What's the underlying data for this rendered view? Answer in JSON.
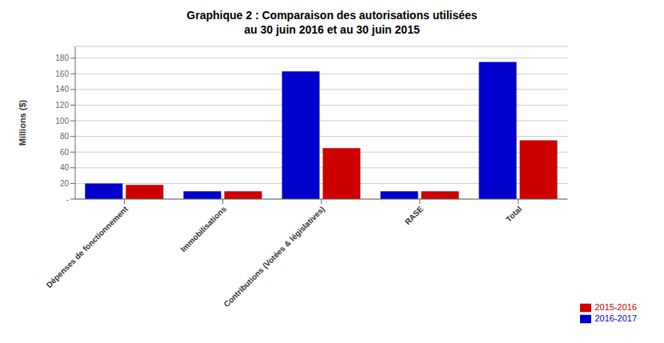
{
  "chart_data": {
    "type": "bar",
    "title": "Graphique 2 : Comparaison des autorisations utilisées\nau 30 juin 2016 et au 30 juin 2015",
    "categories": [
      "Dépenses de fonctionnement",
      "Immobilisations",
      "Contributions (Votées & législatives)",
      "RASE",
      "Total"
    ],
    "series": [
      {
        "name": "2016-2017",
        "color": "#0000CC",
        "values": [
          20,
          10,
          163,
          10,
          175
        ]
      },
      {
        "name": "2015-2016",
        "color": "#CC0000",
        "values": [
          18,
          10,
          65,
          10,
          75
        ]
      }
    ],
    "ylabel": "Millions ($)",
    "ylim": [
      0,
      195
    ],
    "yticks": [
      {
        "value": 0,
        "label": "-"
      },
      20,
      40,
      60,
      80,
      100,
      120,
      140,
      160,
      180
    ],
    "grid": true,
    "legend": "lower right"
  }
}
